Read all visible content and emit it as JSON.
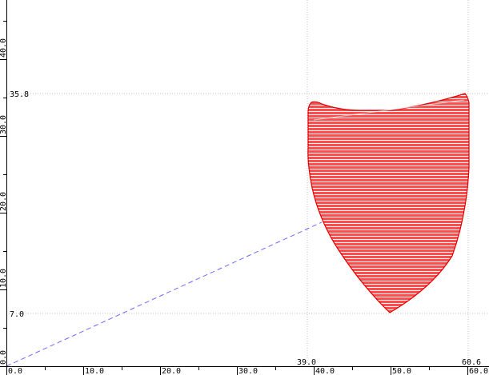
{
  "colors": {
    "background": "#ffffff",
    "axis": "#000000",
    "grid": "#bfbfbf",
    "shape_fill": "#ff4d4d",
    "shape_edge": "#e00000",
    "hatch": "#ffffff",
    "dashed_line": "#6a6aff"
  },
  "x_axis": {
    "labels": [
      "0.0",
      "10.0",
      "20.0",
      "30.0",
      "40.0",
      "50.0",
      "60.0"
    ]
  },
  "y_axis": {
    "labels": [
      "0.0",
      "10.0",
      "20.0",
      "30.0",
      "40.0"
    ]
  },
  "markers": {
    "x_left": "39.0",
    "x_right": "60.6",
    "y_top": "35.8",
    "y_bottom": "7.0"
  }
}
